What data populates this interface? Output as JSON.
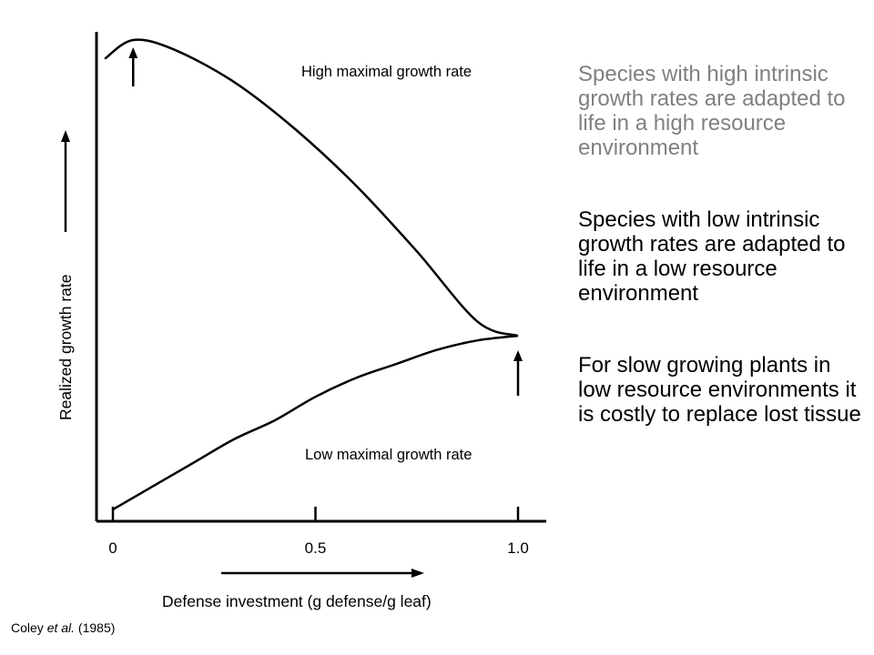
{
  "chart_data": {
    "type": "line",
    "xlabel": "Defense investment (g defense/g leaf)",
    "ylabel": "Realized growth rate",
    "x_ticks": [
      "0",
      "0.5",
      "1.0"
    ],
    "xlim": [
      -0.05,
      1.1
    ],
    "ylim": [
      0,
      1
    ],
    "grid": false,
    "series": [
      {
        "name": "High maximal growth rate",
        "x": [
          -0.02,
          0.05,
          0.15,
          0.3,
          0.45,
          0.6,
          0.75,
          0.9,
          1.0
        ],
        "y": [
          0.96,
          1.0,
          0.98,
          0.91,
          0.81,
          0.69,
          0.55,
          0.4,
          0.37
        ]
      },
      {
        "name": "Low maximal growth rate",
        "x": [
          0.0,
          0.1,
          0.2,
          0.3,
          0.4,
          0.5,
          0.6,
          0.7,
          0.8,
          0.9,
          1.0
        ],
        "y": [
          0.0,
          0.05,
          0.1,
          0.15,
          0.19,
          0.24,
          0.28,
          0.31,
          0.34,
          0.36,
          0.37
        ]
      }
    ],
    "annotations": [
      {
        "text": "High maximal growth rate",
        "arrow_at_x": 0.05,
        "arrow_direction": "up"
      },
      {
        "text": "Low maximal growth rate",
        "arrow_at_x": 1.0,
        "arrow_direction": "up"
      }
    ]
  },
  "notes": {
    "high_resource": "Species with high intrinsic growth rates are adapted to life in a high resource environment",
    "low_resource": "Species with low intrinsic growth rates are adapted to life in a low resource environment",
    "slow_growing": "For slow growing plants in low resource environments it is costly to replace lost tissue"
  },
  "citation": {
    "author": "Coley ",
    "etal": "et al.",
    "year": " (1985)"
  }
}
